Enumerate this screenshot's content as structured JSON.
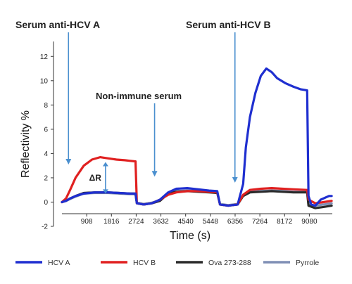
{
  "chart_data": {
    "type": "line",
    "xlabel": "Time (s)",
    "ylabel": "Reflectivity %",
    "xlim": [
      0,
      10000
    ],
    "ylim": [
      -2,
      13
    ],
    "x_ticks": [
      908,
      1816,
      2724,
      3632,
      4540,
      5448,
      6356,
      7264,
      8172,
      9080
    ],
    "y_ticks": [
      -2,
      0,
      2,
      4,
      6,
      8,
      10,
      12
    ],
    "grid": false,
    "legend_position": "bottom",
    "annotations": [
      {
        "text": "Serum anti-HCV A",
        "arrow_x": 240,
        "arrow_to_y": 3.1
      },
      {
        "text": "Non-immune serum",
        "arrow_x": 3400,
        "arrow_to_y": 2.1
      },
      {
        "text": "Serum anti-HCV B",
        "arrow_x": 6350,
        "arrow_to_y": 1.6
      },
      {
        "text": "ΔR",
        "x": 1600,
        "y_from": 0.7,
        "y_to": 3.3
      }
    ],
    "series": [
      {
        "name": "HCV A",
        "color": "#1f2fd0",
        "x": [
          0,
          150,
          300,
          500,
          800,
          1200,
          1700,
          2100,
          2500,
          2700,
          2750,
          3000,
          3300,
          3600,
          3900,
          4200,
          4600,
          5000,
          5400,
          5700,
          5800,
          6100,
          6450,
          6650,
          6750,
          6900,
          7100,
          7300,
          7500,
          7700,
          7900,
          8200,
          8500,
          8750,
          9000,
          9050,
          9150,
          9300,
          9500,
          9800,
          9900
        ],
        "y": [
          0,
          0.1,
          0.3,
          0.5,
          0.7,
          0.8,
          0.8,
          0.75,
          0.7,
          0.7,
          -0.1,
          -0.2,
          -0.1,
          0.2,
          0.8,
          1.1,
          1.15,
          1.05,
          0.95,
          0.9,
          -0.2,
          -0.3,
          -0.2,
          1.5,
          4.5,
          7.0,
          9.0,
          10.4,
          11.0,
          10.7,
          10.2,
          9.8,
          9.5,
          9.3,
          9.2,
          0.5,
          -0.2,
          -0.3,
          0.2,
          0.5,
          0.5
        ]
      },
      {
        "name": "HCV B",
        "color": "#e02020",
        "x": [
          0,
          150,
          300,
          500,
          800,
          1100,
          1400,
          1700,
          2000,
          2300,
          2500,
          2700,
          2750,
          3000,
          3300,
          3600,
          3900,
          4200,
          4600,
          5000,
          5400,
          5700,
          5800,
          6100,
          6450,
          6650,
          6900,
          7300,
          7700,
          8100,
          8500,
          9000,
          9050,
          9300,
          9600,
          9900
        ],
        "y": [
          0,
          0.3,
          1.0,
          2.0,
          3.0,
          3.5,
          3.7,
          3.6,
          3.5,
          3.45,
          3.4,
          3.35,
          -0.1,
          -0.2,
          -0.1,
          0.2,
          0.6,
          0.8,
          0.9,
          0.9,
          0.85,
          0.8,
          -0.2,
          -0.3,
          -0.2,
          0.6,
          1.0,
          1.1,
          1.15,
          1.1,
          1.05,
          1.0,
          0.2,
          -0.1,
          0.0,
          0.1
        ]
      },
      {
        "name": "Ova 273-288",
        "color": "#2a2a2a",
        "x": [
          0,
          150,
          300,
          500,
          800,
          1200,
          1700,
          2100,
          2500,
          2700,
          2750,
          3000,
          3300,
          3600,
          3900,
          4200,
          4600,
          5000,
          5400,
          5700,
          5800,
          6100,
          6450,
          6650,
          6900,
          7300,
          7700,
          8100,
          8500,
          9000,
          9050,
          9300,
          9600,
          9900
        ],
        "y": [
          0,
          0.1,
          0.3,
          0.5,
          0.75,
          0.8,
          0.8,
          0.75,
          0.7,
          0.7,
          -0.1,
          -0.2,
          -0.1,
          0.1,
          0.7,
          0.85,
          0.9,
          0.85,
          0.8,
          0.75,
          -0.2,
          -0.3,
          -0.2,
          0.5,
          0.8,
          0.85,
          0.9,
          0.85,
          0.8,
          0.8,
          -0.3,
          -0.5,
          -0.4,
          -0.3
        ]
      },
      {
        "name": "Pyrrole",
        "color": "#7f8fb5",
        "x": [
          0,
          150,
          300,
          500,
          800,
          1200,
          1700,
          2100,
          2500,
          2700,
          2750,
          3000,
          3300,
          3600,
          3900,
          4200,
          4600,
          5000,
          5400,
          5700,
          5800,
          6100,
          6450,
          6650,
          6900,
          7300,
          7700,
          8100,
          8500,
          9000,
          9050,
          9300,
          9600,
          9900
        ],
        "y": [
          0,
          0.1,
          0.25,
          0.45,
          0.7,
          0.75,
          0.75,
          0.7,
          0.65,
          0.65,
          -0.05,
          -0.15,
          -0.05,
          0.15,
          0.75,
          0.9,
          0.95,
          0.9,
          0.85,
          0.8,
          -0.15,
          -0.25,
          -0.15,
          0.55,
          0.85,
          0.9,
          0.95,
          0.9,
          0.85,
          0.85,
          -0.2,
          -0.3,
          -0.2,
          -0.1
        ]
      }
    ]
  }
}
